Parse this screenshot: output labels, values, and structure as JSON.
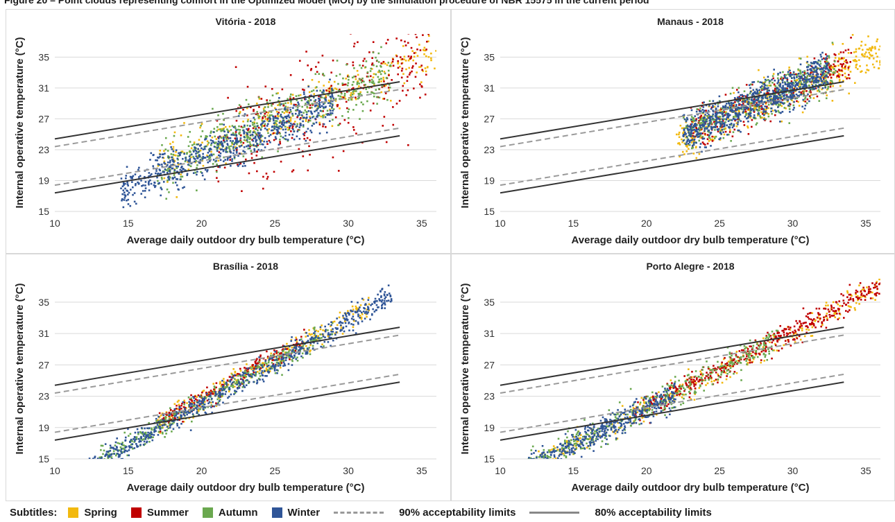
{
  "figure": {
    "title": "Figure 20 – Point clouds representing comfort in the Optimized Model (MOt) by the simulation procedure of NBR 15575 in the current period"
  },
  "legend": {
    "label": "Subtitles:",
    "seasons": [
      {
        "name": "Spring",
        "color": "#f2b90f"
      },
      {
        "name": "Summer",
        "color": "#c00000"
      },
      {
        "name": "Autumn",
        "color": "#6aa84f"
      },
      {
        "name": "Winter",
        "color": "#2f5597"
      }
    ],
    "limit90": "90% acceptability limits",
    "limit80": "80% acceptability limits"
  },
  "chart_data": [
    {
      "type": "scatter",
      "title": "Vitória - 2018",
      "xlabel": "Average daily outdoor dry bulb temperature (°C)",
      "ylabel": "Internal operative temperature (°C)",
      "xlim": [
        10,
        36
      ],
      "ylim": [
        15,
        38
      ],
      "xticks": [
        10,
        15,
        20,
        25,
        30,
        35
      ],
      "yticks": [
        15,
        19,
        23,
        27,
        31,
        35
      ],
      "grid": "horizontal",
      "series": [
        {
          "name": "Spring",
          "color": "#f2b90f",
          "x_range": [
            17,
            36
          ],
          "slope": 0.78,
          "intercept": 7.5,
          "spread": 1.6,
          "count": 300
        },
        {
          "name": "Summer",
          "color": "#c00000",
          "x_range": [
            21,
            35.5
          ],
          "slope": 0.82,
          "intercept": 6.0,
          "spread": 3.5,
          "count": 320
        },
        {
          "name": "Autumn",
          "color": "#6aa84f",
          "x_range": [
            17,
            33
          ],
          "slope": 0.78,
          "intercept": 7.2,
          "spread": 1.7,
          "count": 500
        },
        {
          "name": "Winter",
          "color": "#2f5597",
          "x_range": [
            14.5,
            29
          ],
          "slope": 0.78,
          "intercept": 6.4,
          "spread": 1.3,
          "count": 650
        }
      ],
      "limits": {
        "x_range": [
          10,
          33.5
        ],
        "upper80": [
          24.4,
          31.8
        ],
        "upper90": [
          23.4,
          30.8
        ],
        "lower90": [
          18.4,
          25.8
        ],
        "lower80": [
          17.4,
          24.8
        ]
      }
    },
    {
      "type": "scatter",
      "title": "Manaus - 2018",
      "xlabel": "Average daily outdoor dry bulb temperature (°C)",
      "ylabel": "Internal operative temperature (°C)",
      "xlim": [
        10,
        36
      ],
      "ylim": [
        15,
        38
      ],
      "xticks": [
        10,
        15,
        20,
        25,
        30,
        35
      ],
      "yticks": [
        15,
        19,
        23,
        27,
        31,
        35
      ],
      "grid": "horizontal",
      "series": [
        {
          "name": "Spring",
          "color": "#f2b90f",
          "x_range": [
            22,
            36
          ],
          "slope": 0.82,
          "intercept": 6.2,
          "spread": 1.4,
          "count": 450
        },
        {
          "name": "Summer",
          "color": "#c00000",
          "x_range": [
            23,
            34
          ],
          "slope": 0.82,
          "intercept": 6.4,
          "spread": 1.4,
          "count": 280
        },
        {
          "name": "Autumn",
          "color": "#6aa84f",
          "x_range": [
            22.5,
            33
          ],
          "slope": 0.82,
          "intercept": 6.4,
          "spread": 1.3,
          "count": 420
        },
        {
          "name": "Winter",
          "color": "#2f5597",
          "x_range": [
            22.5,
            32.5
          ],
          "slope": 0.82,
          "intercept": 6.6,
          "spread": 1.2,
          "count": 800
        }
      ],
      "limits": {
        "x_range": [
          10,
          33.5
        ],
        "upper80": [
          24.4,
          31.8
        ],
        "upper90": [
          23.4,
          30.8
        ],
        "lower90": [
          18.4,
          25.8
        ],
        "lower80": [
          17.4,
          24.8
        ]
      }
    },
    {
      "type": "scatter",
      "title": "Brasília - 2018",
      "xlabel": "Average daily outdoor dry bulb temperature (°C)",
      "ylabel": "Internal operative temperature (°C)",
      "xlim": [
        10,
        36
      ],
      "ylim": [
        15,
        38
      ],
      "xticks": [
        10,
        15,
        20,
        25,
        30,
        35
      ],
      "yticks": [
        15,
        19,
        23,
        27,
        31,
        35
      ],
      "grid": "horizontal",
      "series": [
        {
          "name": "Spring",
          "color": "#f2b90f",
          "x_range": [
            17,
            31.5
          ],
          "slope": 1.06,
          "intercept": 1.3,
          "spread": 0.7,
          "count": 300
        },
        {
          "name": "Summer",
          "color": "#c00000",
          "x_range": [
            17,
            27
          ],
          "slope": 1.06,
          "intercept": 1.6,
          "spread": 0.6,
          "count": 220
        },
        {
          "name": "Autumn",
          "color": "#6aa84f",
          "x_range": [
            13,
            29
          ],
          "slope": 1.06,
          "intercept": 1.0,
          "spread": 0.7,
          "count": 350
        },
        {
          "name": "Winter",
          "color": "#2f5597",
          "x_range": [
            10,
            33
          ],
          "slope": 1.06,
          "intercept": 0.8,
          "spread": 0.75,
          "count": 750
        }
      ],
      "limits": {
        "x_range": [
          10,
          33.5
        ],
        "upper80": [
          24.4,
          31.8
        ],
        "upper90": [
          23.4,
          30.8
        ],
        "lower90": [
          18.4,
          25.8
        ],
        "lower80": [
          17.4,
          24.8
        ]
      }
    },
    {
      "type": "scatter",
      "title": "Porto Alegre - 2018",
      "xlabel": "Average daily outdoor dry bulb temperature (°C)",
      "ylabel": "Internal operative temperature (°C)",
      "xlim": [
        10,
        36
      ],
      "ylim": [
        15,
        38
      ],
      "xticks": [
        10,
        15,
        20,
        25,
        30,
        35
      ],
      "yticks": [
        15,
        19,
        23,
        27,
        31,
        35
      ],
      "grid": "horizontal",
      "series": [
        {
          "name": "Spring",
          "color": "#f2b90f",
          "x_range": [
            12,
            36
          ],
          "slope": 0.96,
          "intercept": 2.3,
          "spread": 0.8,
          "count": 320
        },
        {
          "name": "Summer",
          "color": "#c00000",
          "x_range": [
            19,
            36
          ],
          "slope": 0.96,
          "intercept": 2.5,
          "spread": 0.7,
          "count": 450
        },
        {
          "name": "Autumn",
          "color": "#6aa84f",
          "x_range": [
            11,
            29
          ],
          "slope": 0.96,
          "intercept": 2.3,
          "spread": 0.9,
          "count": 450
        },
        {
          "name": "Winter",
          "color": "#2f5597",
          "x_range": [
            10.5,
            22
          ],
          "slope": 0.96,
          "intercept": 2.3,
          "spread": 0.8,
          "count": 500
        }
      ],
      "limits": {
        "x_range": [
          10,
          33.5
        ],
        "upper80": [
          24.4,
          31.8
        ],
        "upper90": [
          23.4,
          30.8
        ],
        "lower90": [
          18.4,
          25.8
        ],
        "lower80": [
          17.4,
          24.8
        ]
      }
    }
  ]
}
